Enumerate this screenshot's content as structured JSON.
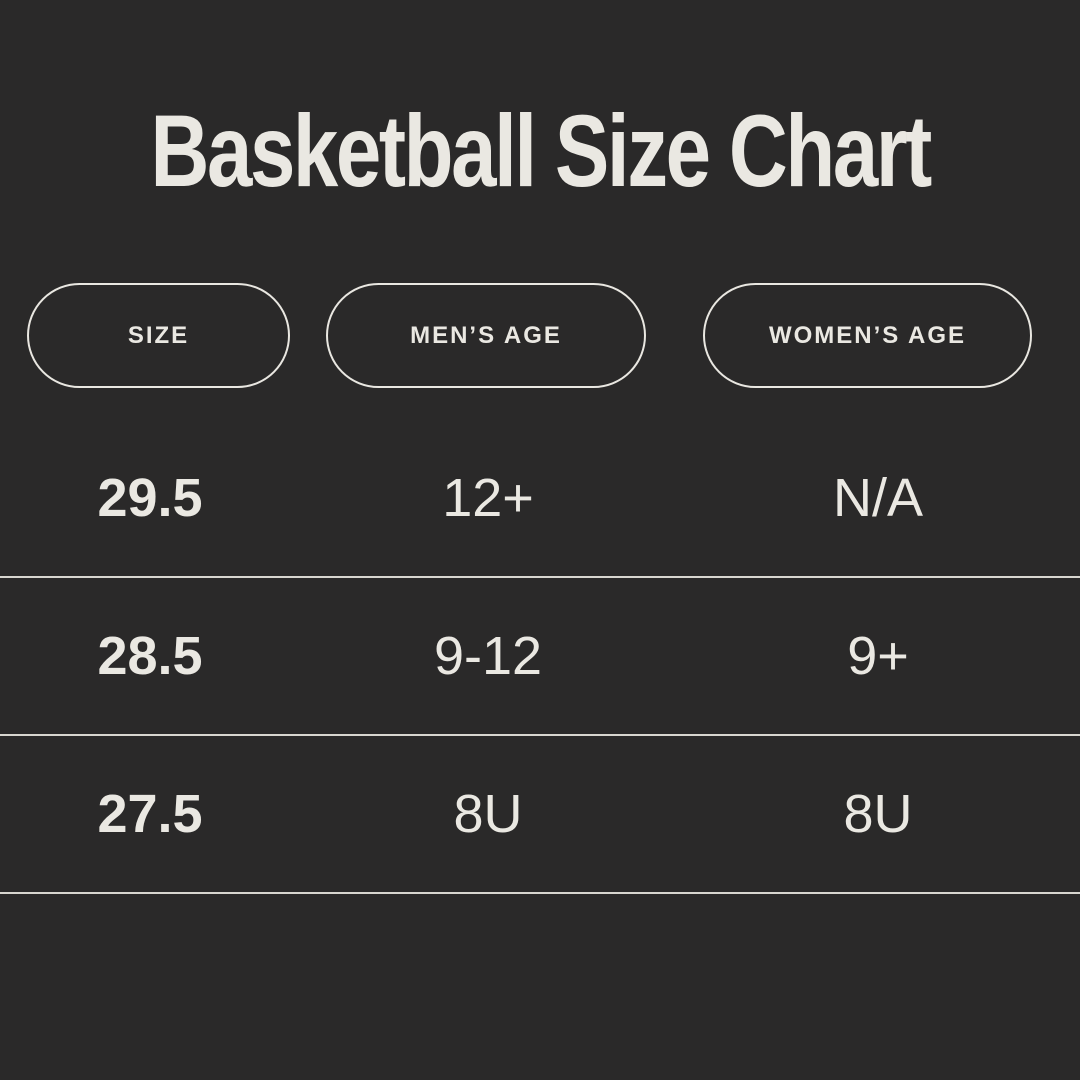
{
  "title": "Basketball Size Chart",
  "colors": {
    "background": "#2a2929",
    "text": "#eae8e2",
    "divider": "#d8d6d0",
    "pill_border": "#e9e7e1"
  },
  "table": {
    "headers": [
      "SIZE",
      "MEN’S AGE",
      "WOMEN’S AGE"
    ],
    "rows": [
      [
        "29.5",
        "12+",
        "N/A"
      ],
      [
        "28.5",
        "9-12",
        "9+"
      ],
      [
        "27.5",
        "8U",
        "8U"
      ]
    ]
  },
  "chart_data": {
    "type": "table",
    "title": "Basketball Size Chart",
    "columns": [
      "SIZE",
      "MEN'S AGE",
      "WOMEN'S AGE"
    ],
    "rows": [
      [
        "29.5",
        "12+",
        "N/A"
      ],
      [
        "28.5",
        "9-12",
        "9+"
      ],
      [
        "27.5",
        "8U",
        "8U"
      ]
    ],
    "layout": {
      "background": "dark",
      "header_style": "outlined-pills",
      "row_dividers": true
    }
  }
}
